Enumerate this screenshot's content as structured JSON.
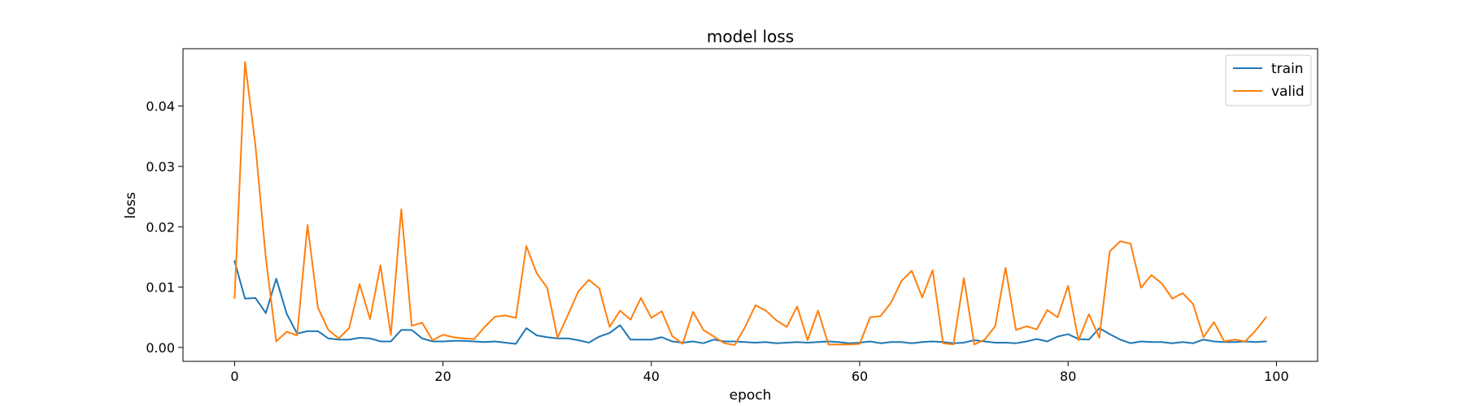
{
  "chart_data": {
    "type": "line",
    "title": "model loss",
    "xlabel": "epoch",
    "ylabel": "loss",
    "xlim": [
      -4.95,
      103.95
    ],
    "ylim": [
      -0.0023,
      0.0495
    ],
    "xticks": [
      0,
      20,
      40,
      60,
      80,
      100
    ],
    "yticks": [
      0.0,
      0.01,
      0.02,
      0.03,
      0.04
    ],
    "xtick_labels": [
      "0",
      "20",
      "40",
      "60",
      "80",
      "100"
    ],
    "ytick_labels": [
      "0.00",
      "0.01",
      "0.02",
      "0.03",
      "0.04"
    ],
    "legend_position": "top-right",
    "grid": false,
    "series": [
      {
        "name": "train",
        "color": "#1f77b4",
        "x": [
          0,
          1,
          2,
          3,
          4,
          5,
          6,
          7,
          8,
          9,
          10,
          11,
          12,
          13,
          14,
          15,
          16,
          17,
          18,
          19,
          20,
          21,
          22,
          23,
          24,
          25,
          26,
          27,
          28,
          29,
          30,
          31,
          32,
          33,
          34,
          35,
          36,
          37,
          38,
          39,
          40,
          41,
          42,
          43,
          44,
          45,
          46,
          47,
          48,
          49,
          50,
          51,
          52,
          53,
          54,
          55,
          56,
          57,
          58,
          59,
          60,
          61,
          62,
          63,
          64,
          65,
          66,
          67,
          68,
          69,
          70,
          71,
          72,
          73,
          74,
          75,
          76,
          77,
          78,
          79,
          80,
          81,
          82,
          83,
          84,
          85,
          86,
          87,
          88,
          89,
          90,
          91,
          92,
          93,
          94,
          95,
          96,
          97,
          98,
          99
        ],
        "values": [
          0.0143,
          0.0081,
          0.0082,
          0.0057,
          0.0114,
          0.0056,
          0.0023,
          0.0027,
          0.0027,
          0.0015,
          0.0013,
          0.0013,
          0.0016,
          0.0015,
          0.001,
          0.001,
          0.0029,
          0.0029,
          0.0015,
          0.001,
          0.001,
          0.0011,
          0.0011,
          0.001,
          0.0009,
          0.001,
          0.0008,
          0.0006,
          0.0032,
          0.002,
          0.0017,
          0.0015,
          0.0015,
          0.0012,
          0.0008,
          0.0018,
          0.0024,
          0.0037,
          0.0013,
          0.0013,
          0.0013,
          0.0017,
          0.001,
          0.0008,
          0.001,
          0.0007,
          0.0013,
          0.001,
          0.001,
          0.0009,
          0.0008,
          0.0009,
          0.0007,
          0.0008,
          0.0009,
          0.0008,
          0.0009,
          0.001,
          0.0009,
          0.0007,
          0.0008,
          0.001,
          0.0007,
          0.0009,
          0.0009,
          0.0007,
          0.0009,
          0.001,
          0.0009,
          0.0007,
          0.0008,
          0.0012,
          0.001,
          0.0008,
          0.0008,
          0.0007,
          0.001,
          0.0014,
          0.001,
          0.0018,
          0.0022,
          0.0014,
          0.0013,
          0.0032,
          0.0022,
          0.0013,
          0.0007,
          0.001,
          0.0009,
          0.0009,
          0.0007,
          0.0009,
          0.0007,
          0.0013,
          0.001,
          0.0009,
          0.0009,
          0.001,
          0.0009,
          0.001
        ]
      },
      {
        "name": "valid",
        "color": "#ff7f0e",
        "x": [
          0,
          1,
          2,
          3,
          4,
          5,
          6,
          7,
          8,
          9,
          10,
          11,
          12,
          13,
          14,
          15,
          16,
          17,
          18,
          19,
          20,
          21,
          22,
          23,
          24,
          25,
          26,
          27,
          28,
          29,
          30,
          31,
          32,
          33,
          34,
          35,
          36,
          37,
          38,
          39,
          40,
          41,
          42,
          43,
          44,
          45,
          46,
          47,
          48,
          49,
          50,
          51,
          52,
          53,
          54,
          55,
          56,
          57,
          58,
          59,
          60,
          61,
          62,
          63,
          64,
          65,
          66,
          67,
          68,
          69,
          70,
          71,
          72,
          73,
          74,
          75,
          76,
          77,
          78,
          79,
          80,
          81,
          82,
          83,
          84,
          85,
          86,
          87,
          88,
          89,
          90,
          91,
          92,
          93,
          94,
          95,
          96,
          97,
          98,
          99
        ],
        "values": [
          0.0082,
          0.0473,
          0.0335,
          0.0148,
          0.001,
          0.0026,
          0.002,
          0.0203,
          0.0066,
          0.0029,
          0.0015,
          0.0032,
          0.0105,
          0.0047,
          0.0136,
          0.0021,
          0.0229,
          0.0036,
          0.0041,
          0.0012,
          0.0021,
          0.0017,
          0.0015,
          0.0014,
          0.0034,
          0.0051,
          0.0053,
          0.0049,
          0.0168,
          0.0123,
          0.0099,
          0.0016,
          0.0054,
          0.0093,
          0.0112,
          0.0098,
          0.0034,
          0.0061,
          0.0046,
          0.0082,
          0.0049,
          0.006,
          0.0019,
          0.0006,
          0.0059,
          0.0029,
          0.0018,
          0.0007,
          0.0004,
          0.0034,
          0.007,
          0.0061,
          0.0045,
          0.0034,
          0.0068,
          0.0012,
          0.0061,
          0.0005,
          0.0005,
          0.0005,
          0.0006,
          0.005,
          0.0052,
          0.0074,
          0.011,
          0.0127,
          0.0083,
          0.0128,
          0.0007,
          0.0005,
          0.0115,
          0.0005,
          0.0013,
          0.0035,
          0.0132,
          0.0029,
          0.0035,
          0.003,
          0.0062,
          0.005,
          0.0102,
          0.0012,
          0.0055,
          0.0016,
          0.0159,
          0.0176,
          0.0172,
          0.0099,
          0.012,
          0.0106,
          0.0081,
          0.009,
          0.0072,
          0.0017,
          0.0042,
          0.001,
          0.0013,
          0.001,
          0.0028,
          0.005
        ]
      }
    ]
  }
}
